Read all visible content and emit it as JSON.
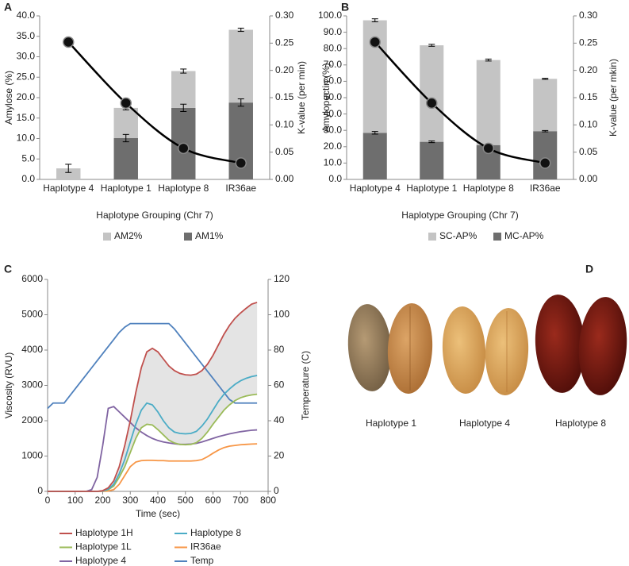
{
  "chart_data": [
    {
      "type": "bar",
      "panel": "A",
      "stacked": true,
      "y_label": "Amylose (%)",
      "y2_label": "K-value (per min)",
      "x_label": "Haplotype Grouping (Chr 7)",
      "categories": [
        "Haplotype 4",
        "Haplotype 1",
        "Haplotype 8",
        "IR36ae"
      ],
      "series": [
        {
          "name": "AM1%",
          "color": "#6e6e6e",
          "values": [
            null,
            10.1,
            17.5,
            18.8
          ],
          "errors": [
            null,
            0.9,
            0.9,
            0.9
          ]
        },
        {
          "name": "AM2%",
          "color": "#c4c4c4",
          "values": [
            2.7,
            7.4,
            9.0,
            17.8
          ],
          "errors": [
            1.0,
            0.5,
            0.5,
            0.4
          ]
        },
        {
          "type": "line",
          "axis": "y2",
          "color": "#000000",
          "values": [
            0.252,
            0.14,
            0.057,
            0.03
          ]
        }
      ],
      "ylim": [
        0,
        40
      ],
      "yticks": [
        {
          "value": 0,
          "label": "0.0"
        },
        {
          "value": 5,
          "label": "5.0"
        },
        {
          "value": 10,
          "label": "10.0"
        },
        {
          "value": 15,
          "label": "15.0"
        },
        {
          "value": 20,
          "label": "20.0"
        },
        {
          "value": 25,
          "label": "25.0"
        },
        {
          "value": 30,
          "label": "30.0"
        },
        {
          "value": 35,
          "label": "35.0"
        },
        {
          "value": 40,
          "label": "40.0"
        }
      ],
      "y2lim": [
        0,
        0.3
      ],
      "y2ticks": [
        {
          "value": 0,
          "label": "0.00"
        },
        {
          "value": 0.05,
          "label": "0.05"
        },
        {
          "value": 0.1,
          "label": "0.10"
        },
        {
          "value": 0.15,
          "label": "0.15"
        },
        {
          "value": 0.2,
          "label": "0.20"
        },
        {
          "value": 0.25,
          "label": "0.25"
        },
        {
          "value": 0.3,
          "label": "0.30"
        }
      ],
      "grid": false,
      "legend": "bottom"
    },
    {
      "type": "bar",
      "panel": "B",
      "stacked": true,
      "y_label": "Amylopectin (%)",
      "y2_label": "K-value (per mkin)",
      "x_label": "Haplotype Grouping (Chr 7)",
      "categories": [
        "Haplotype 4",
        "Haplotype 1",
        "Haplotype 8",
        "IR36ae"
      ],
      "series": [
        {
          "name": "MC-AP%",
          "color": "#6e6e6e",
          "values": [
            28.5,
            23.0,
            21.0,
            29.5
          ],
          "errors": [
            0.8,
            0.5,
            0.4,
            0.4
          ]
        },
        {
          "name": "SC-AP%",
          "color": "#c4c4c4",
          "values": [
            68.8,
            59.0,
            52.0,
            32.0
          ],
          "errors": [
            0.9,
            0.6,
            0.6,
            0.3
          ]
        },
        {
          "type": "line",
          "axis": "y2",
          "color": "#000000",
          "values": [
            0.252,
            0.14,
            0.057,
            0.03
          ]
        }
      ],
      "ylim": [
        0,
        100
      ],
      "yticks": [
        {
          "value": 0,
          "label": "0.0"
        },
        {
          "value": 10,
          "label": "10.0"
        },
        {
          "value": 20,
          "label": "20.0"
        },
        {
          "value": 30,
          "label": "30.0"
        },
        {
          "value": 40,
          "label": "40.0"
        },
        {
          "value": 50,
          "label": "50.0"
        },
        {
          "value": 60,
          "label": "60.0"
        },
        {
          "value": 70,
          "label": "70.0"
        },
        {
          "value": 80,
          "label": "80.0"
        },
        {
          "value": 90,
          "label": "90.0"
        },
        {
          "value": 100,
          "label": "100.0"
        }
      ],
      "y2lim": [
        0,
        0.3
      ],
      "y2ticks": [
        {
          "value": 0,
          "label": "0.00"
        },
        {
          "value": 0.05,
          "label": "0.05"
        },
        {
          "value": 0.1,
          "label": "0.10"
        },
        {
          "value": 0.15,
          "label": "0.15"
        },
        {
          "value": 0.2,
          "label": "0.20"
        },
        {
          "value": 0.25,
          "label": "0.25"
        },
        {
          "value": 0.3,
          "label": "0.30"
        }
      ],
      "grid": false,
      "legend": "bottom"
    },
    {
      "type": "line",
      "panel": "C",
      "y_label": "Viscosity (RVU)",
      "y2_label": "Temperature (C)",
      "x_label": "Time (sec)",
      "x": [
        0,
        20,
        40,
        60,
        80,
        100,
        120,
        140,
        160,
        180,
        200,
        220,
        240,
        260,
        280,
        300,
        320,
        340,
        360,
        380,
        400,
        420,
        440,
        460,
        480,
        500,
        520,
        540,
        560,
        580,
        600,
        620,
        640,
        660,
        680,
        700,
        720,
        740,
        760
      ],
      "series": [
        {
          "name": "Haplotype 1H",
          "color": "#c0504d",
          "values": [
            0,
            0,
            0,
            0,
            0,
            0,
            0,
            0,
            0,
            0,
            20,
            100,
            300,
            700,
            1300,
            2000,
            2800,
            3500,
            3950,
            4050,
            3950,
            3750,
            3550,
            3420,
            3340,
            3300,
            3290,
            3320,
            3420,
            3600,
            3850,
            4150,
            4450,
            4700,
            4900,
            5050,
            5180,
            5300,
            5350
          ]
        },
        {
          "name": "Haplotype 8",
          "color": "#4bacc6",
          "values": [
            0,
            0,
            0,
            0,
            0,
            0,
            0,
            0,
            0,
            0,
            10,
            60,
            200,
            500,
            900,
            1400,
            1900,
            2300,
            2500,
            2450,
            2250,
            2000,
            1800,
            1680,
            1640,
            1630,
            1640,
            1700,
            1850,
            2050,
            2300,
            2550,
            2750,
            2900,
            3030,
            3130,
            3200,
            3250,
            3280
          ]
        },
        {
          "name": "Haplotype 1L",
          "color": "#9bbb59",
          "values": [
            0,
            0,
            0,
            0,
            0,
            0,
            0,
            0,
            0,
            0,
            10,
            50,
            150,
            400,
            700,
            1100,
            1500,
            1800,
            1900,
            1880,
            1750,
            1600,
            1450,
            1370,
            1330,
            1320,
            1330,
            1380,
            1500,
            1680,
            1900,
            2100,
            2300,
            2450,
            2570,
            2650,
            2700,
            2730,
            2750
          ]
        },
        {
          "name": "IR36ae",
          "color": "#f79646",
          "values": [
            0,
            0,
            0,
            0,
            0,
            0,
            0,
            0,
            0,
            0,
            0,
            10,
            50,
            200,
            450,
            700,
            830,
            870,
            880,
            880,
            870,
            870,
            860,
            860,
            860,
            860,
            860,
            870,
            900,
            980,
            1080,
            1170,
            1240,
            1280,
            1300,
            1320,
            1330,
            1340,
            1345
          ]
        },
        {
          "name": "Haplotype 4",
          "color": "#8064a2",
          "values": [
            0,
            0,
            0,
            0,
            0,
            0,
            0,
            0,
            50,
            400,
            1300,
            2350,
            2400,
            2250,
            2100,
            1950,
            1800,
            1680,
            1580,
            1500,
            1440,
            1400,
            1370,
            1350,
            1330,
            1330,
            1340,
            1360,
            1400,
            1450,
            1500,
            1550,
            1590,
            1630,
            1660,
            1690,
            1710,
            1730,
            1740
          ]
        },
        {
          "name": "Temp",
          "color": "#4f81bd",
          "axis": "y2",
          "values": [
            47,
            50,
            50,
            50,
            54,
            58,
            62,
            66,
            70,
            74,
            78,
            82,
            86,
            90,
            93,
            95,
            95,
            95,
            95,
            95,
            95,
            95,
            95,
            92,
            88,
            84,
            80,
            76,
            72,
            68,
            64,
            60,
            56,
            52,
            50,
            50,
            50,
            50,
            50
          ]
        }
      ],
      "xlim": [
        0,
        800
      ],
      "xticks": [
        0,
        100,
        200,
        300,
        400,
        500,
        600,
        700,
        800
      ],
      "ylim": [
        0,
        6000
      ],
      "yticks": [
        0,
        1000,
        2000,
        3000,
        4000,
        5000,
        6000
      ],
      "y2lim": [
        0,
        120
      ],
      "y2ticks": [
        0,
        20,
        40,
        60,
        80,
        100,
        120
      ],
      "grid": false,
      "legend": "bottom"
    }
  ],
  "photo": {
    "panel": "D",
    "labels": [
      "Haplotype 1",
      "Haplotype 4",
      "Haplotype 8"
    ]
  }
}
